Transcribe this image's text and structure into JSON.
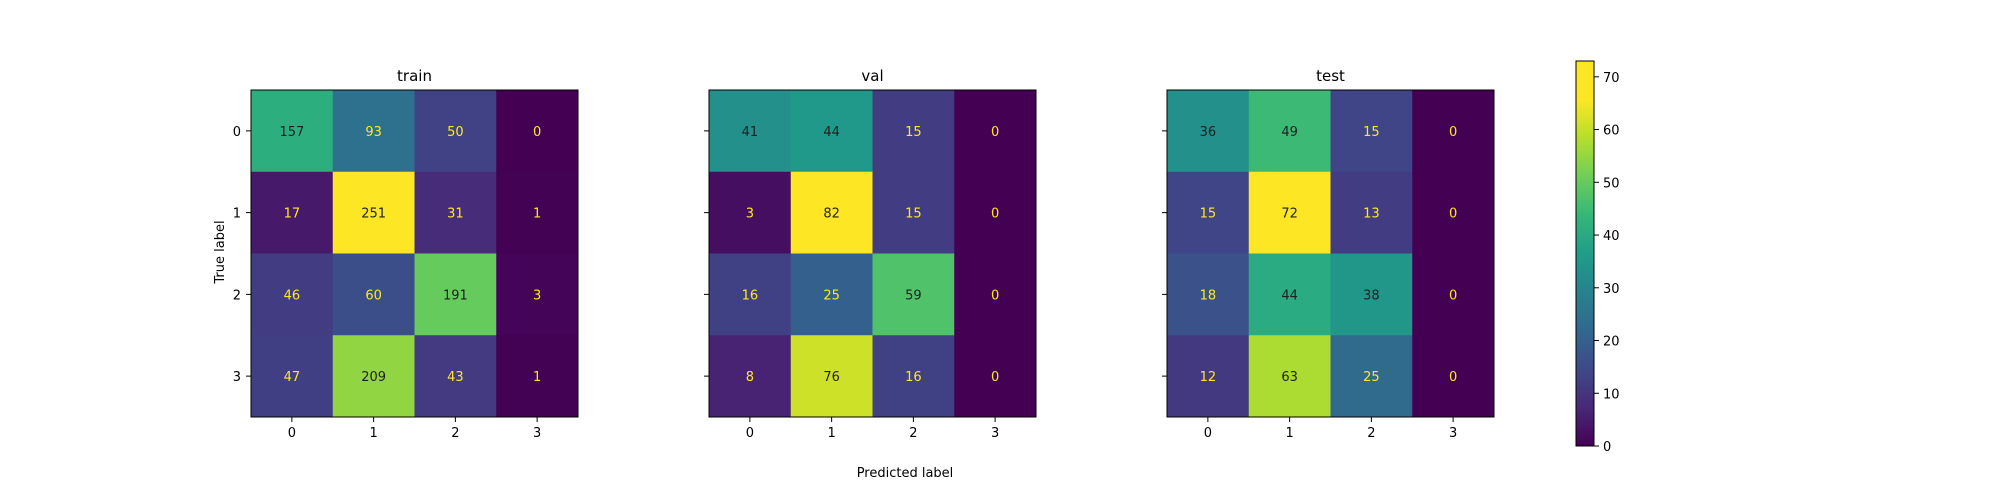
{
  "chart_data": {
    "type": "heatmap",
    "colormap": "viridis",
    "xlabel": "Predicted label",
    "ylabel": "True label",
    "grid": false,
    "colors": {
      "text_dark": "#1f1f1f",
      "text_light": "#fde725"
    },
    "colorbar": {
      "range": [
        0,
        73
      ],
      "ticks": [
        0,
        10,
        20,
        30,
        40,
        50,
        60,
        70
      ]
    },
    "panels": [
      {
        "title": "train",
        "x_ticks": [
          "0",
          "1",
          "2",
          "3"
        ],
        "y_ticks": [
          "0",
          "1",
          "2",
          "3"
        ],
        "matrix": [
          [
            157,
            93,
            50,
            0
          ],
          [
            17,
            251,
            31,
            1
          ],
          [
            46,
            60,
            191,
            3
          ],
          [
            47,
            209,
            43,
            1
          ]
        ]
      },
      {
        "title": "val",
        "x_ticks": [
          "0",
          "1",
          "2",
          "3"
        ],
        "y_ticks": [],
        "matrix": [
          [
            41,
            44,
            15,
            0
          ],
          [
            3,
            82,
            15,
            0
          ],
          [
            16,
            25,
            59,
            0
          ],
          [
            8,
            76,
            16,
            0
          ]
        ]
      },
      {
        "title": "test",
        "x_ticks": [
          "0",
          "1",
          "2",
          "3"
        ],
        "y_ticks": [],
        "matrix": [
          [
            36,
            49,
            15,
            0
          ],
          [
            15,
            72,
            13,
            0
          ],
          [
            18,
            44,
            38,
            0
          ],
          [
            12,
            63,
            25,
            0
          ]
        ]
      }
    ]
  }
}
